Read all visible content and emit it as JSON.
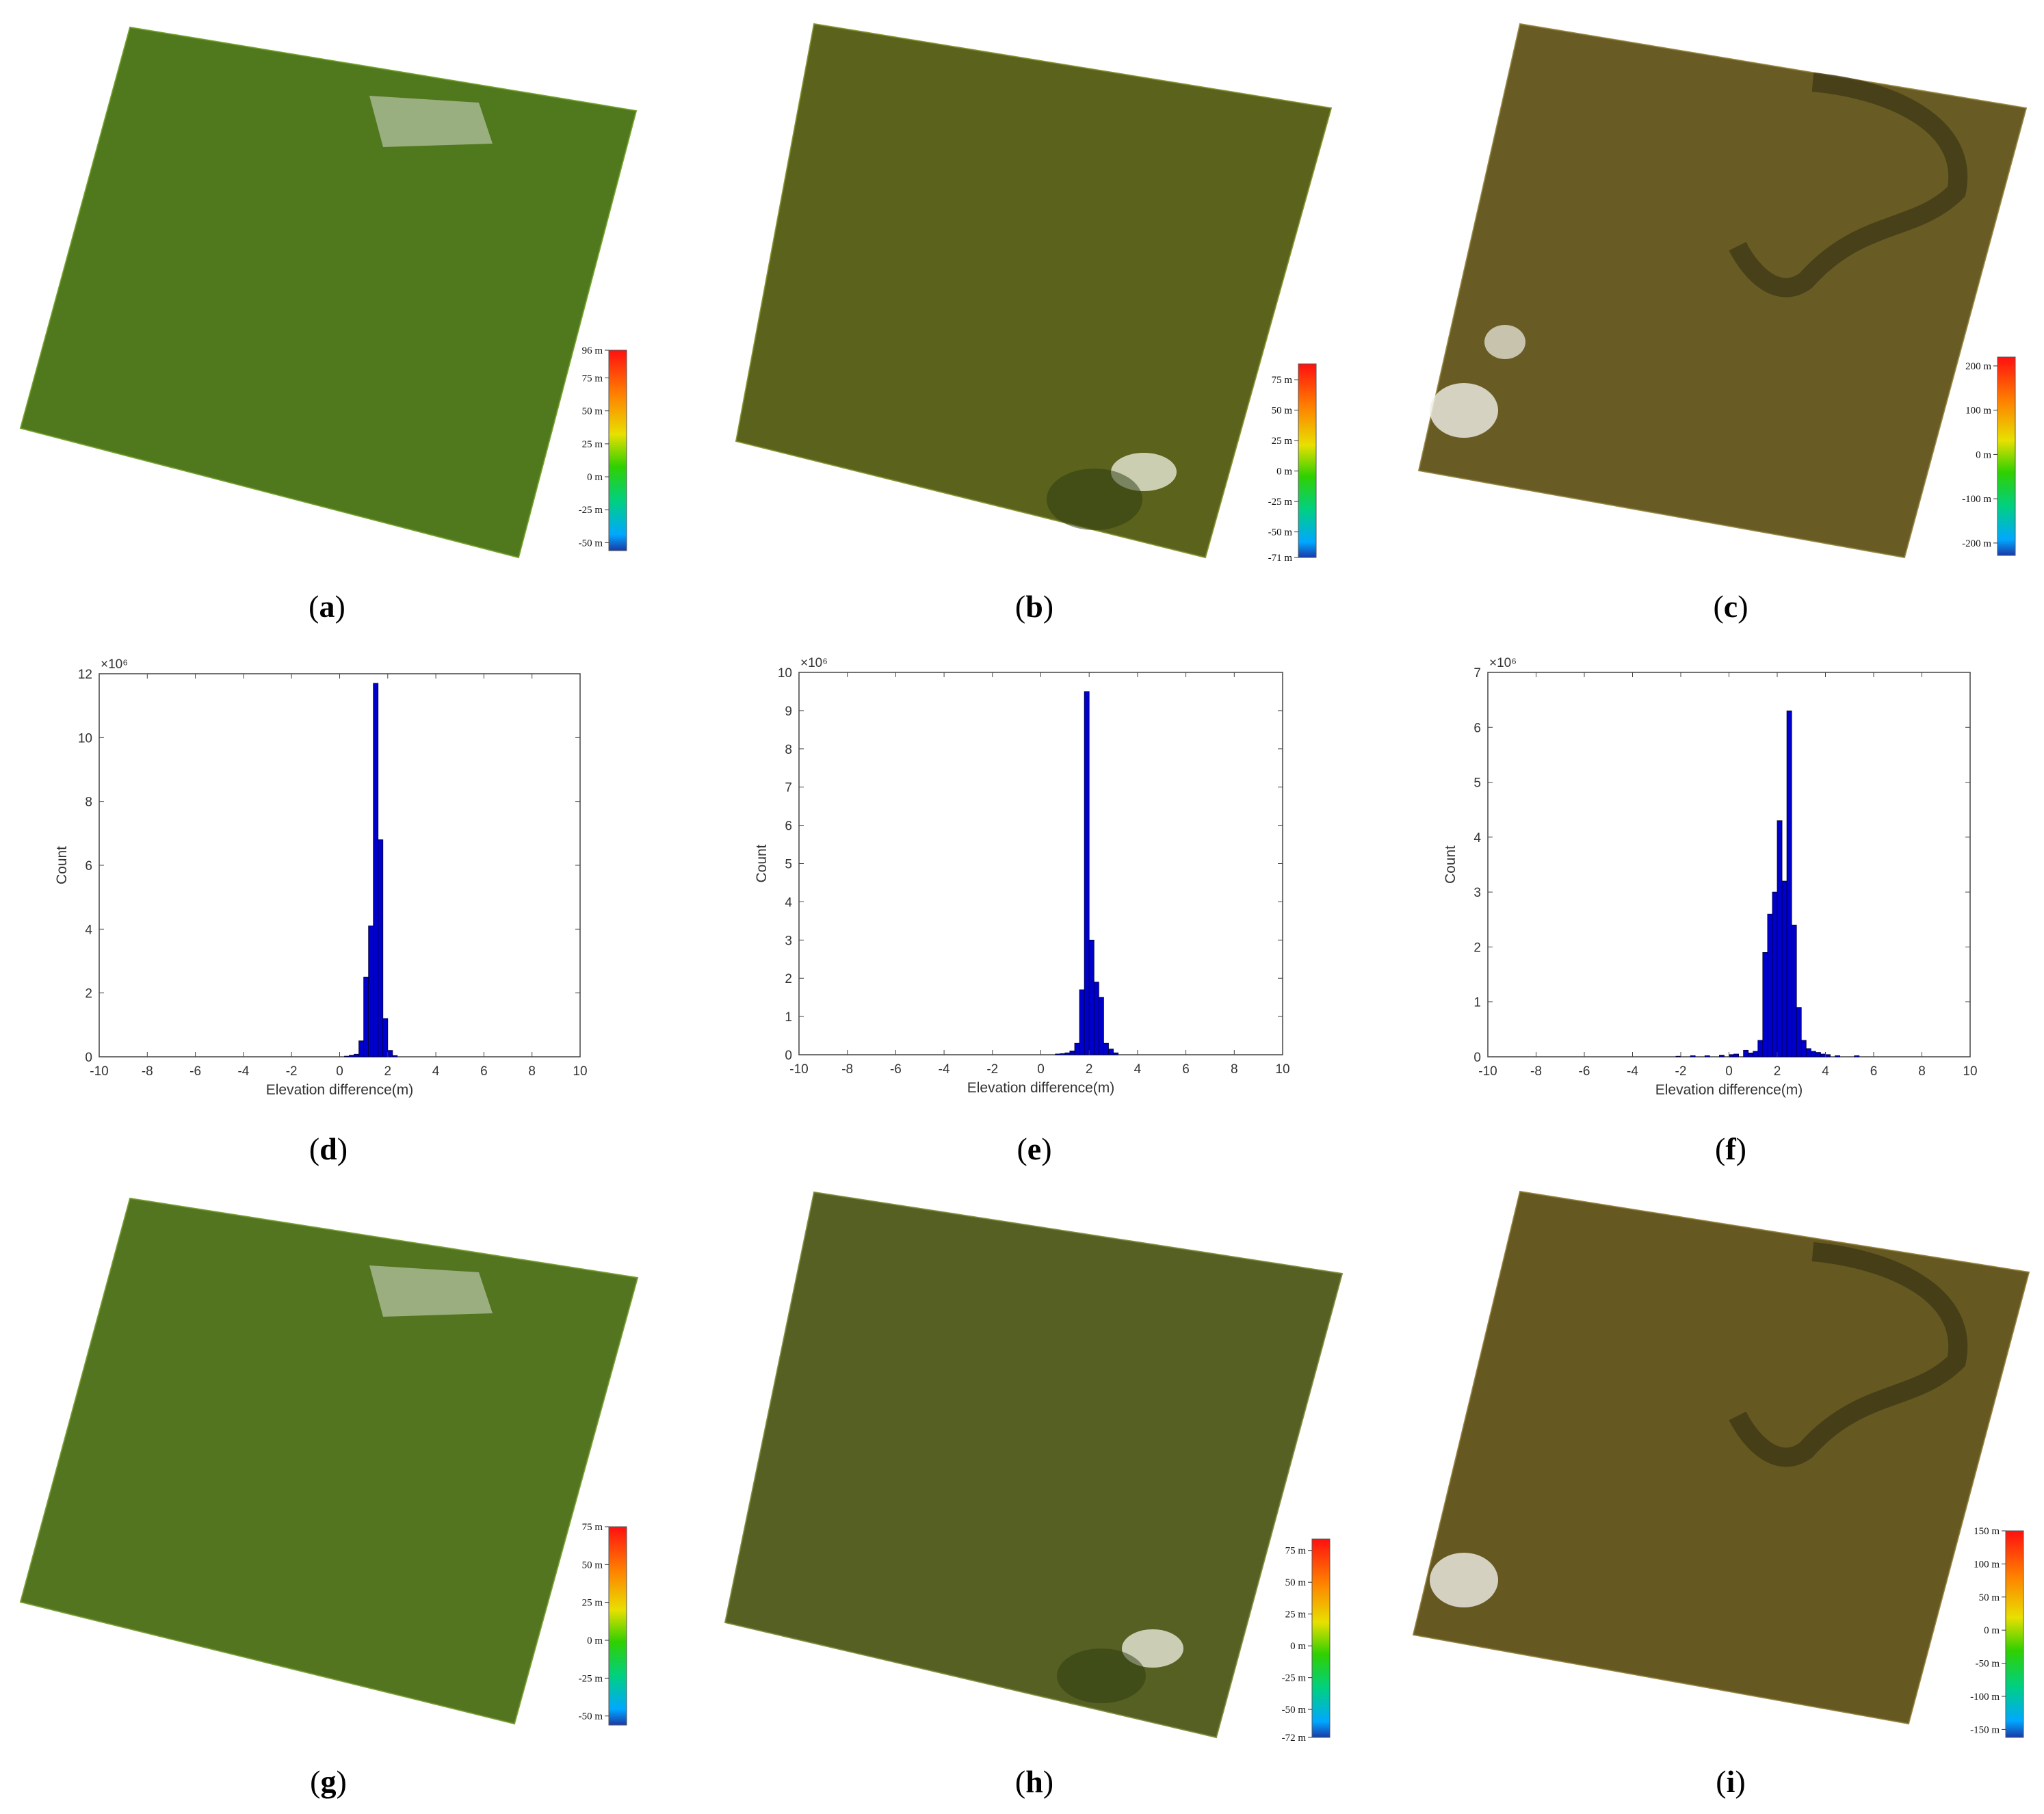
{
  "panel_labels": [
    "a",
    "b",
    "c",
    "d",
    "e",
    "f",
    "g",
    "h",
    "i"
  ],
  "colorbars": [
    {
      "panel": "a",
      "min": -56,
      "max": 96,
      "ticks": [
        {
          "v": 96,
          "label": "96 m"
        },
        {
          "v": 75,
          "label": "75 m"
        },
        {
          "v": 50,
          "label": "50 m"
        },
        {
          "v": 25,
          "label": "25 m"
        },
        {
          "v": 0,
          "label": "0 m"
        },
        {
          "v": -25,
          "label": "-25 m"
        },
        {
          "v": -50,
          "label": "-50 m"
        }
      ]
    },
    {
      "panel": "b",
      "min": -71,
      "max": 88,
      "ticks": [
        {
          "v": 75,
          "label": "75 m"
        },
        {
          "v": 50,
          "label": "50 m"
        },
        {
          "v": 25,
          "label": "25 m"
        },
        {
          "v": 0,
          "label": "0 m"
        },
        {
          "v": -25,
          "label": "-25 m"
        },
        {
          "v": -50,
          "label": "-50 m"
        },
        {
          "v": -71,
          "label": "-71 m"
        }
      ]
    },
    {
      "panel": "c",
      "min": -228,
      "max": 220,
      "ticks": [
        {
          "v": 200,
          "label": "200 m"
        },
        {
          "v": 100,
          "label": "100 m"
        },
        {
          "v": 0,
          "label": "0 m"
        },
        {
          "v": -100,
          "label": "-100 m"
        },
        {
          "v": -200,
          "label": "-200 m"
        }
      ]
    },
    {
      "panel": "g",
      "min": -56,
      "max": 75,
      "ticks": [
        {
          "v": 75,
          "label": "75 m"
        },
        {
          "v": 50,
          "label": "50 m"
        },
        {
          "v": 25,
          "label": "25 m"
        },
        {
          "v": 0,
          "label": "0 m"
        },
        {
          "v": -25,
          "label": "-25 m"
        },
        {
          "v": -50,
          "label": "-50 m"
        }
      ]
    },
    {
      "panel": "h",
      "min": -72,
      "max": 84,
      "ticks": [
        {
          "v": 75,
          "label": "75 m"
        },
        {
          "v": 50,
          "label": "50 m"
        },
        {
          "v": 25,
          "label": "25 m"
        },
        {
          "v": 0,
          "label": "0 m"
        },
        {
          "v": -25,
          "label": "-25 m"
        },
        {
          "v": -50,
          "label": "-50 m"
        },
        {
          "v": -72,
          "label": "-72 m"
        }
      ]
    },
    {
      "panel": "i",
      "min": -162,
      "max": 150,
      "ticks": [
        {
          "v": 150,
          "label": "150 m"
        },
        {
          "v": 100,
          "label": "100 m"
        },
        {
          "v": 50,
          "label": "50 m"
        },
        {
          "v": 0,
          "label": "0 m"
        },
        {
          "v": -50,
          "label": "-50 m"
        },
        {
          "v": -100,
          "label": "-100 m"
        },
        {
          "v": -150,
          "label": "-150 m"
        }
      ]
    }
  ],
  "map_panels": [
    {
      "panel": "a",
      "tint": "#5c8a22",
      "highlight": "#7aa832"
    },
    {
      "panel": "b",
      "tint": "#6b7320",
      "highlight": "#8e9a36"
    },
    {
      "panel": "c",
      "tint": "#7d6f2c",
      "highlight": "#a08f48"
    },
    {
      "panel": "g",
      "tint": "#5f8624",
      "highlight": "#80a53a"
    },
    {
      "panel": "h",
      "tint": "#66712a",
      "highlight": "#8a9444"
    },
    {
      "panel": "i",
      "tint": "#7a6a28",
      "highlight": "#9e8a44"
    }
  ],
  "chart_data": [
    {
      "panel": "d",
      "type": "bar",
      "xlabel": "Elevation difference(m)",
      "ylabel": "Count",
      "exponent_label": "×10⁶",
      "xlim": [
        -10,
        10
      ],
      "ylim": [
        0,
        12
      ],
      "xticks": [
        -10,
        -8,
        -6,
        -4,
        -2,
        0,
        2,
        4,
        6,
        8,
        10
      ],
      "yticks": [
        0,
        2,
        4,
        6,
        8,
        10,
        12
      ],
      "bin_width": 0.2,
      "bins": [
        [
          0.2,
          0.02
        ],
        [
          0.4,
          0.05
        ],
        [
          0.6,
          0.08
        ],
        [
          0.8,
          0.5
        ],
        [
          1.0,
          2.5
        ],
        [
          1.2,
          4.1
        ],
        [
          1.4,
          11.7
        ],
        [
          1.6,
          6.8
        ],
        [
          1.8,
          1.2
        ],
        [
          2.0,
          0.2
        ],
        [
          2.2,
          0.04
        ]
      ],
      "bar_color": "#0000cc"
    },
    {
      "panel": "e",
      "type": "bar",
      "xlabel": "Elevation difference(m)",
      "ylabel": "Count",
      "exponent_label": "×10⁶",
      "xlim": [
        -10,
        10
      ],
      "ylim": [
        0,
        10
      ],
      "xticks": [
        -10,
        -8,
        -6,
        -4,
        -2,
        0,
        2,
        4,
        6,
        8,
        10
      ],
      "yticks": [
        0,
        1,
        2,
        3,
        4,
        5,
        6,
        7,
        8,
        9,
        10
      ],
      "bin_width": 0.2,
      "bins": [
        [
          0.6,
          0.02
        ],
        [
          0.8,
          0.03
        ],
        [
          1.0,
          0.05
        ],
        [
          1.2,
          0.1
        ],
        [
          1.4,
          0.3
        ],
        [
          1.6,
          1.7
        ],
        [
          1.8,
          9.5
        ],
        [
          2.0,
          3.0
        ],
        [
          2.2,
          1.9
        ],
        [
          2.4,
          1.5
        ],
        [
          2.6,
          0.3
        ],
        [
          2.8,
          0.15
        ],
        [
          3.0,
          0.05
        ]
      ],
      "bar_color": "#0000cc"
    },
    {
      "panel": "f",
      "type": "bar",
      "xlabel": "Elevation difference(m)",
      "ylabel": "Count",
      "exponent_label": "×10⁶",
      "xlim": [
        -10,
        10
      ],
      "ylim": [
        0,
        7
      ],
      "xticks": [
        -10,
        -8,
        -6,
        -4,
        -2,
        0,
        2,
        4,
        6,
        8,
        10
      ],
      "yticks": [
        0,
        1,
        2,
        3,
        4,
        5,
        6,
        7
      ],
      "bin_width": 0.2,
      "bins": [
        [
          -2.2,
          0.01
        ],
        [
          -1.6,
          0.02
        ],
        [
          -1.0,
          0.02
        ],
        [
          -0.4,
          0.03
        ],
        [
          0.0,
          0.04
        ],
        [
          0.2,
          0.05
        ],
        [
          0.6,
          0.12
        ],
        [
          0.8,
          0.07
        ],
        [
          1.0,
          0.1
        ],
        [
          1.2,
          0.3
        ],
        [
          1.4,
          1.9
        ],
        [
          1.6,
          2.6
        ],
        [
          1.8,
          3.0
        ],
        [
          2.0,
          4.3
        ],
        [
          2.2,
          3.2
        ],
        [
          2.4,
          6.3
        ],
        [
          2.6,
          2.4
        ],
        [
          2.8,
          0.9
        ],
        [
          3.0,
          0.3
        ],
        [
          3.2,
          0.15
        ],
        [
          3.4,
          0.1
        ],
        [
          3.6,
          0.08
        ],
        [
          3.8,
          0.05
        ],
        [
          4.0,
          0.04
        ],
        [
          4.4,
          0.02
        ],
        [
          5.2,
          0.02
        ]
      ],
      "bar_color": "#0000cc"
    }
  ]
}
